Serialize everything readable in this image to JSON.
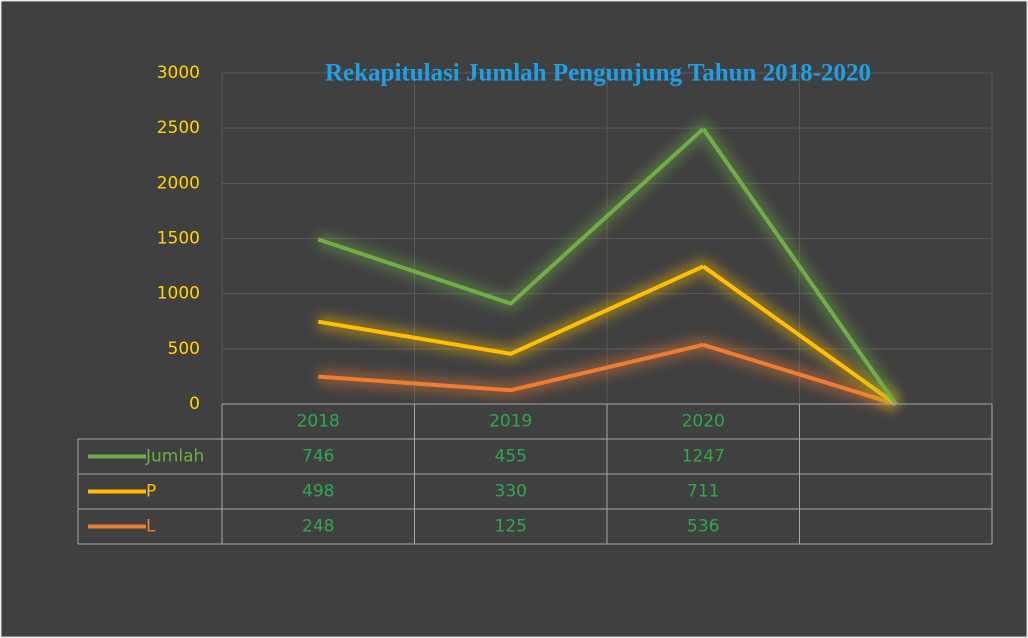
{
  "chart_data": {
    "type": "line",
    "stacked": true,
    "empty_cells": "zero",
    "title": "Rekapitulasi Jumlah Pengunjung Tahun 2018-2020",
    "categories": [
      "2018",
      "2019",
      "2020",
      null
    ],
    "series": [
      {
        "name": "Jumlah",
        "color": "#70ad47",
        "values": [
          746,
          455,
          1247,
          null
        ]
      },
      {
        "name": "P",
        "color": "#ffc000",
        "values": [
          498,
          330,
          711,
          null
        ]
      },
      {
        "name": "L",
        "color": "#ed7d31",
        "values": [
          248,
          125,
          536,
          null
        ]
      }
    ],
    "ylim": [
      0,
      3000
    ],
    "yticks": [
      0,
      500,
      1000,
      1500,
      2000,
      2500,
      3000
    ],
    "grid": true,
    "data_table": true
  }
}
